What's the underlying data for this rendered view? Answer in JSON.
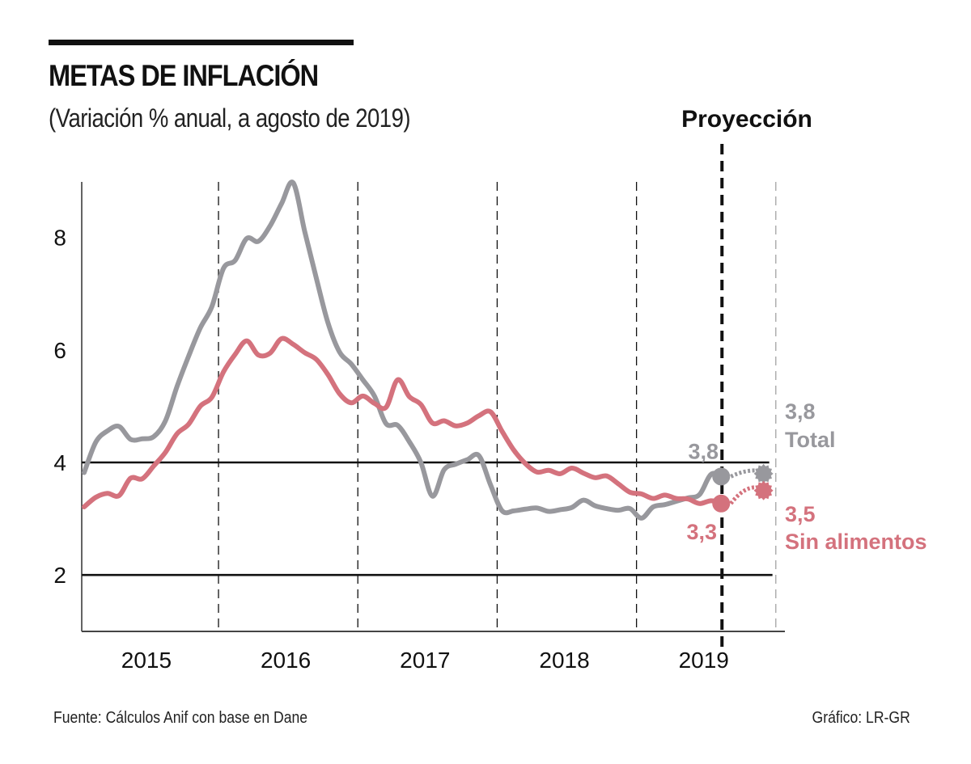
{
  "header": {
    "title": "METAS DE INFLACIÓN",
    "subtitle": "(Variación % anual, a agosto de 2019)"
  },
  "footer": {
    "source": "Fuente: Cálculos Anif con base en Dane",
    "credit": "Gráfico: LR-GR"
  },
  "colors": {
    "total": "#98989d",
    "sin_alimentos": "#d4727d",
    "reference_lines": "#111111",
    "projection_divider": "#111111"
  },
  "chart_data": {
    "type": "line",
    "title": "METAS DE INFLACIÓN",
    "subtitle": "(Variación % anual, a agosto de 2019)",
    "xlabel": "",
    "ylabel": "",
    "ylim": [
      1,
      9
    ],
    "yticks": [
      2,
      4,
      6,
      8
    ],
    "ytick_labels": [
      "2",
      "4",
      "6",
      "8"
    ],
    "x_categories": [
      "2015",
      "2016",
      "2017",
      "2018",
      "2019"
    ],
    "x_unit": "month index (0 = Jan 2015)",
    "grid": "vertical dashed lines at year boundaries",
    "reference_lines": [
      2,
      4
    ],
    "projection_label": "Proyección",
    "projection_start_month_index": 55,
    "projection_end_month_index": 59,
    "series": [
      {
        "name": "Total",
        "label": "Total",
        "color": "#98989d",
        "x": [
          0,
          1,
          2,
          3,
          4,
          5,
          6,
          7,
          8,
          9,
          10,
          11,
          12,
          13,
          14,
          15,
          16,
          17,
          18,
          19,
          20,
          21,
          22,
          23,
          24,
          25,
          26,
          27,
          28,
          29,
          30,
          31,
          32,
          33,
          34,
          35,
          36,
          37,
          38,
          39,
          40,
          41,
          42,
          43,
          44,
          45,
          46,
          47,
          48,
          49,
          50,
          51,
          52,
          53,
          54,
          55
        ],
        "values": [
          3.82,
          4.36,
          4.56,
          4.64,
          4.41,
          4.42,
          4.46,
          4.74,
          5.35,
          5.89,
          6.39,
          6.77,
          7.45,
          7.59,
          7.98,
          7.93,
          8.2,
          8.6,
          8.97,
          8.1,
          7.27,
          6.48,
          5.96,
          5.75,
          5.47,
          5.18,
          4.69,
          4.66,
          4.37,
          4.0,
          3.4,
          3.87,
          3.97,
          4.05,
          4.12,
          3.6,
          3.14,
          3.14,
          3.17,
          3.19,
          3.13,
          3.16,
          3.2,
          3.33,
          3.23,
          3.18,
          3.15,
          3.18,
          3.01,
          3.21,
          3.25,
          3.31,
          3.37,
          3.43,
          3.79,
          3.75
        ],
        "end_label": "3,8",
        "projection": {
          "x": 59,
          "value": 3.8,
          "label": "3,8"
        }
      },
      {
        "name": "Sin alimentos",
        "label": "Sin alimentos",
        "color": "#d4727d",
        "x": [
          0,
          1,
          2,
          3,
          4,
          5,
          6,
          7,
          8,
          9,
          10,
          11,
          12,
          13,
          14,
          15,
          16,
          17,
          18,
          19,
          20,
          21,
          22,
          23,
          24,
          25,
          26,
          27,
          28,
          29,
          30,
          31,
          32,
          33,
          34,
          35,
          36,
          37,
          38,
          39,
          40,
          41,
          42,
          43,
          44,
          45,
          46,
          47,
          48,
          49,
          50,
          51,
          52,
          53,
          54,
          55
        ],
        "values": [
          3.21,
          3.38,
          3.45,
          3.41,
          3.72,
          3.71,
          3.94,
          4.18,
          4.51,
          4.68,
          5.0,
          5.16,
          5.61,
          5.92,
          6.16,
          5.91,
          5.94,
          6.2,
          6.1,
          5.95,
          5.83,
          5.56,
          5.22,
          5.06,
          5.18,
          5.05,
          4.98,
          5.47,
          5.17,
          5.03,
          4.7,
          4.74,
          4.65,
          4.7,
          4.83,
          4.9,
          4.55,
          4.22,
          3.98,
          3.83,
          3.86,
          3.8,
          3.9,
          3.81,
          3.73,
          3.76,
          3.62,
          3.47,
          3.44,
          3.36,
          3.42,
          3.36,
          3.35,
          3.27,
          3.32,
          3.27
        ],
        "end_label": "3,3",
        "projection": {
          "x": 59,
          "value": 3.5,
          "label": "3,5"
        }
      }
    ],
    "annotations": [
      {
        "text": "3,8",
        "series": "Total",
        "position": "above last actual point"
      },
      {
        "text": "3,3",
        "series": "Sin alimentos",
        "position": "below last actual point"
      },
      {
        "text": "3,8",
        "series": "Total",
        "position": "right of projected point"
      },
      {
        "text": "Total",
        "series": "Total",
        "position": "right of projected point"
      },
      {
        "text": "3,5",
        "series": "Sin alimentos",
        "position": "right of projected point"
      },
      {
        "text": "Sin alimentos",
        "series": "Sin alimentos",
        "position": "right of projected point"
      }
    ],
    "legend": "none (direct labels at right)"
  }
}
